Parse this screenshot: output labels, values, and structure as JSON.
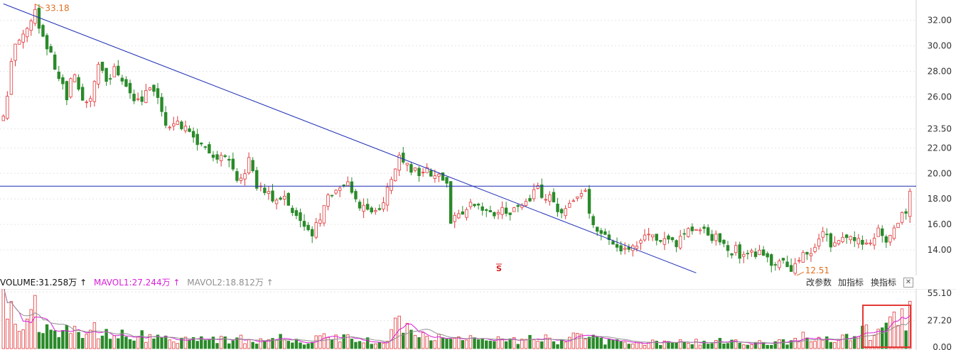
{
  "indicator_bar": {
    "volume_label": "VOLUME:31.258万 ↑",
    "mavol1_label": "MAVOL1:27.244万 ↑",
    "mavol2_label": "MAVOL2:18.812万 ↑",
    "buttons": [
      "改参数",
      "加指标",
      "换指标"
    ],
    "close_glyph": "✕"
  },
  "colors": {
    "up": "#e0373a",
    "down": "#2a8a2a",
    "trendline": "#1f2fb4",
    "mavol1": "#d81ed8",
    "mavol2": "#909090",
    "highlight_box": "#e53935",
    "annotation": "#e07020",
    "marker": "#d42020"
  },
  "icons": {
    "close": "close-icon",
    "signal_marker": "s-marker-icon"
  },
  "chart_data": [
    {
      "type": "candlestick",
      "title": "",
      "ylim": [
        12.0,
        33.6
      ],
      "y_ticks": [
        "32.00",
        "30.00",
        "28.00",
        "26.00",
        "23.50",
        "22.00",
        "20.00",
        "18.00",
        "16.00",
        "14.00"
      ],
      "y_tick_values": [
        32,
        30,
        28,
        26,
        23.5,
        22,
        20,
        18,
        16,
        14
      ],
      "high_label": "33.18",
      "low_label": "12.51",
      "marker_label": "S",
      "close_path": [
        [
          0,
          24.5
        ],
        [
          3,
          30.5
        ],
        [
          6,
          31.3
        ],
        [
          8,
          32.6
        ],
        [
          10,
          31.0
        ],
        [
          13,
          28.5
        ],
        [
          16,
          26.2
        ],
        [
          18,
          27.8
        ],
        [
          20,
          26.0
        ],
        [
          22,
          25.5
        ],
        [
          24,
          28.8
        ],
        [
          26,
          27.0
        ],
        [
          28,
          28.0
        ],
        [
          30,
          27.2
        ],
        [
          32,
          26.5
        ],
        [
          34,
          25.6
        ],
        [
          36,
          26.2
        ],
        [
          38,
          26.8
        ],
        [
          40,
          24.5
        ],
        [
          42,
          23.6
        ],
        [
          44,
          23.8
        ],
        [
          46,
          23.3
        ],
        [
          48,
          22.8
        ],
        [
          50,
          22.5
        ],
        [
          52,
          21.5
        ],
        [
          54,
          20.8
        ],
        [
          56,
          21.2
        ],
        [
          58,
          20.2
        ],
        [
          60,
          19.5
        ],
        [
          62,
          21.0
        ],
        [
          64,
          19.0
        ],
        [
          66,
          18.4
        ],
        [
          68,
          18.0
        ],
        [
          70,
          18.3
        ],
        [
          72,
          17.4
        ],
        [
          74,
          16.8
        ],
        [
          76,
          15.6
        ],
        [
          78,
          15.0
        ],
        [
          80,
          16.5
        ],
        [
          82,
          18.2
        ],
        [
          84,
          19.1
        ],
        [
          86,
          19.3
        ],
        [
          88,
          18.8
        ],
        [
          90,
          17.5
        ],
        [
          92,
          16.8
        ],
        [
          94,
          17.3
        ],
        [
          96,
          17.6
        ],
        [
          98,
          19.5
        ],
        [
          100,
          21.8
        ],
        [
          102,
          20.8
        ],
        [
          104,
          20.0
        ],
        [
          106,
          20.5
        ],
        [
          108,
          20.2
        ],
        [
          110,
          19.6
        ],
        [
          112,
          19.3
        ],
        [
          113,
          16.2
        ],
        [
          115,
          16.8
        ],
        [
          117,
          17.6
        ],
        [
          119,
          17.4
        ],
        [
          121,
          16.9
        ],
        [
          123,
          16.7
        ],
        [
          125,
          17.0
        ],
        [
          127,
          17.1
        ],
        [
          129,
          16.9
        ],
        [
          131,
          17.2
        ],
        [
          133,
          18.0
        ],
        [
          135,
          18.6
        ],
        [
          137,
          18.4
        ],
        [
          139,
          17.6
        ],
        [
          141,
          17.0
        ],
        [
          143,
          17.3
        ],
        [
          145,
          17.8
        ],
        [
          147,
          18.3
        ],
        [
          149,
          16.0
        ],
        [
          151,
          15.2
        ],
        [
          153,
          14.6
        ],
        [
          155,
          14.0
        ],
        [
          157,
          14.2
        ],
        [
          159,
          14.5
        ],
        [
          161,
          14.6
        ],
        [
          163,
          14.9
        ],
        [
          165,
          15.0
        ],
        [
          167,
          14.6
        ],
        [
          169,
          14.4
        ],
        [
          171,
          14.9
        ],
        [
          173,
          15.3
        ],
        [
          175,
          15.6
        ],
        [
          177,
          15.3
        ],
        [
          179,
          15.1
        ],
        [
          181,
          14.5
        ],
        [
          183,
          14.1
        ],
        [
          185,
          13.9
        ],
        [
          187,
          13.6
        ],
        [
          189,
          13.9
        ],
        [
          191,
          13.7
        ],
        [
          193,
          13.3
        ],
        [
          195,
          13.1
        ],
        [
          197,
          12.8
        ],
        [
          199,
          12.7
        ],
        [
          201,
          13.2
        ],
        [
          203,
          13.6
        ],
        [
          205,
          14.5
        ],
        [
          207,
          15.2
        ],
        [
          209,
          14.6
        ],
        [
          211,
          14.3
        ],
        [
          213,
          14.8
        ],
        [
          215,
          15.0
        ],
        [
          217,
          14.7
        ],
        [
          219,
          14.8
        ],
        [
          221,
          15.3
        ],
        [
          223,
          14.9
        ],
        [
          225,
          15.6
        ],
        [
          227,
          16.8
        ],
        [
          228,
          17.2
        ],
        [
          229,
          18.5
        ]
      ],
      "reference_lines": [
        {
          "kind": "horizontal",
          "y": 19.0
        },
        {
          "kind": "trendline",
          "x": [
            0,
            175
          ],
          "y": [
            33.3,
            12.2
          ]
        }
      ]
    },
    {
      "type": "bar",
      "name": "VOLUME",
      "units": "万",
      "ylim": [
        0,
        58
      ],
      "y_ticks": [
        "55.10",
        "27.20",
        "0.00"
      ],
      "y_tick_values": [
        55.1,
        27.2,
        0
      ],
      "series": [
        {
          "name": "MAVOL1",
          "current": 27.244
        },
        {
          "name": "MAVOL2",
          "current": 18.812
        }
      ],
      "current_value": 31.258,
      "volume_profile": [
        [
          0,
          40
        ],
        [
          4,
          28
        ],
        [
          8,
          36
        ],
        [
          14,
          18
        ],
        [
          20,
          14
        ],
        [
          26,
          20
        ],
        [
          30,
          12
        ],
        [
          40,
          11
        ],
        [
          50,
          8
        ],
        [
          60,
          10
        ],
        [
          70,
          9
        ],
        [
          75,
          7
        ],
        [
          80,
          11
        ],
        [
          86,
          12
        ],
        [
          90,
          7
        ],
        [
          96,
          9
        ],
        [
          100,
          24
        ],
        [
          104,
          11
        ],
        [
          110,
          10
        ],
        [
          114,
          13
        ],
        [
          120,
          8
        ],
        [
          130,
          7
        ],
        [
          134,
          12
        ],
        [
          138,
          9
        ],
        [
          142,
          8
        ],
        [
          146,
          12
        ],
        [
          150,
          8
        ],
        [
          160,
          6
        ],
        [
          170,
          6
        ],
        [
          180,
          7
        ],
        [
          190,
          6
        ],
        [
          196,
          6
        ],
        [
          200,
          9
        ],
        [
          206,
          14
        ],
        [
          210,
          12
        ],
        [
          214,
          10
        ],
        [
          218,
          16
        ],
        [
          222,
          14
        ],
        [
          224,
          26
        ],
        [
          226,
          30
        ],
        [
          228,
          32
        ],
        [
          229,
          31
        ]
      ]
    }
  ]
}
